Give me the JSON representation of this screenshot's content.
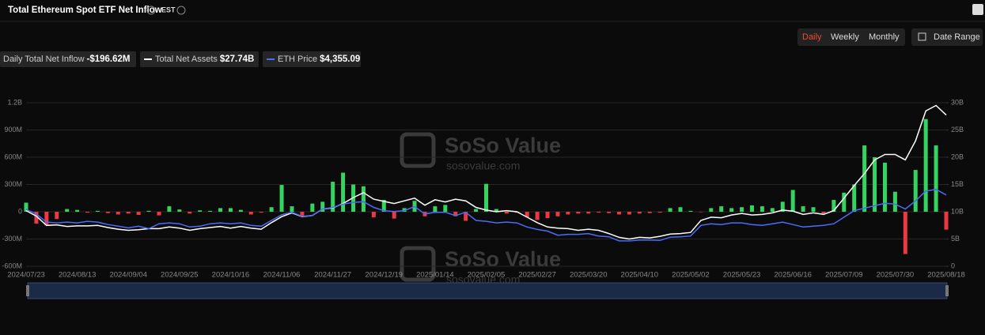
{
  "header": {
    "title": "Total Ethereum Spot ETF Net Inflow",
    "timezone": "EST"
  },
  "controls": {
    "periods": [
      "Daily",
      "Weekly",
      "Monthly"
    ],
    "active": 0,
    "date_range": "Date Range"
  },
  "watermark": {
    "brand": "SoSo Value",
    "site": "sosovalue.com"
  },
  "chart_data": {
    "type": "combo",
    "categories": [
      "2024/07/23",
      null,
      null,
      null,
      null,
      "2024/08/13",
      null,
      null,
      null,
      null,
      "2024/09/04",
      null,
      null,
      null,
      null,
      "2024/09/25",
      null,
      null,
      null,
      null,
      "2024/10/16",
      null,
      null,
      null,
      null,
      "2024/11/06",
      null,
      null,
      null,
      null,
      "2024/11/27",
      null,
      null,
      null,
      null,
      "2024/12/19",
      null,
      null,
      null,
      null,
      "2025/01/14",
      null,
      null,
      null,
      null,
      "2025/02/05",
      null,
      null,
      null,
      null,
      "2025/02/27",
      null,
      null,
      null,
      null,
      "2025/03/20",
      null,
      null,
      null,
      null,
      "2025/04/10",
      null,
      null,
      null,
      null,
      "2025/05/02",
      null,
      null,
      null,
      null,
      "2025/05/23",
      null,
      null,
      null,
      null,
      "2025/06/16",
      null,
      null,
      null,
      null,
      "2025/07/09",
      null,
      null,
      null,
      null,
      "2025/07/30",
      null,
      null,
      null,
      null,
      "2025/08/18"
    ],
    "series": [
      {
        "name": "Daily Total Net Inflow",
        "type": "bar",
        "color": "#35d35f",
        "negative_color": "#ea3943",
        "latest_label": "-$196.62M",
        "values": [
          100000000.0,
          -130000000.0,
          -150000000.0,
          -80000000.0,
          30000000.0,
          20000000.0,
          -10000000.0,
          10000000.0,
          -15000000.0,
          -30000000.0,
          -20000000.0,
          -35000000.0,
          10000000.0,
          -40000000.0,
          60000000.0,
          25000000.0,
          -20000000.0,
          15000000.0,
          10000000.0,
          40000000.0,
          40000000.0,
          20000000.0,
          -30000000.0,
          -10000000.0,
          50000000.0,
          295000000.0,
          60000000.0,
          -50000000.0,
          90000000.0,
          110000000.0,
          330000000.0,
          430000000.0,
          300000000.0,
          280000000.0,
          -60000000.0,
          130000000.0,
          -75000000.0,
          40000000.0,
          120000000.0,
          -50000000.0,
          60000000.0,
          75000000.0,
          -50000000.0,
          -100000000.0,
          30000000.0,
          307000000.0,
          30000000.0,
          -20000000.0,
          -10000000.0,
          -60000000.0,
          -90000000.0,
          -70000000.0,
          -50000000.0,
          -30000000.0,
          -20000000.0,
          -20000000.0,
          -10000000.0,
          -15000000.0,
          -30000000.0,
          -30000000.0,
          -20000000.0,
          -15000000.0,
          -10000000.0,
          40000000.0,
          50000000.0,
          10000000.0,
          -5000000.0,
          40000000.0,
          60000000.0,
          40000000.0,
          50000000.0,
          70000000.0,
          60000000.0,
          40000000.0,
          110000000.0,
          240000000.0,
          60000000.0,
          50000000.0,
          -20000000.0,
          130000000.0,
          210000000.0,
          300000000.0,
          730000000.0,
          600000000.0,
          540000000.0,
          220000000.0,
          -465000000.0,
          460000000.0,
          1020000000.0,
          730000000.0,
          -196620000.0
        ]
      },
      {
        "name": "Total Net Assets",
        "type": "line",
        "axis": "y2",
        "color": "#ffffff",
        "latest_label": "$27.74B",
        "values": [
          10200000000.0,
          9200000000.0,
          7500000000.0,
          7600000000.0,
          7300000000.0,
          7400000000.0,
          7400000000.0,
          7500000000.0,
          7100000000.0,
          6800000000.0,
          6600000000.0,
          6700000000.0,
          6900000000.0,
          6900000000.0,
          7200000000.0,
          7000000000.0,
          6600000000.0,
          6900000000.0,
          7100000000.0,
          7300000000.0,
          7000000000.0,
          7300000000.0,
          7000000000.0,
          6800000000.0,
          8000000000.0,
          9100000000.0,
          9800000000.0,
          9100000000.0,
          9300000000.0,
          10500000000.0,
          10700000000.0,
          11500000000.0,
          12600000000.0,
          13500000000.0,
          12300000000.0,
          11900000000.0,
          11500000000.0,
          12000000000.0,
          12500000000.0,
          11200000000.0,
          12200000000.0,
          11800000000.0,
          12300000000.0,
          12000000000.0,
          10800000000.0,
          10300000000.0,
          10000000000.0,
          10200000000.0,
          10000000000.0,
          9000000000.0,
          8000000000.0,
          7200000000.0,
          7000000000.0,
          6900000000.0,
          6600000000.0,
          6800000000.0,
          6600000000.0,
          6000000000.0,
          5300000000.0,
          5000000000.0,
          5300000000.0,
          5200000000.0,
          5500000000.0,
          5900000000.0,
          6000000000.0,
          6200000000.0,
          8400000000.0,
          9000000000.0,
          8900000000.0,
          9400000000.0,
          9700000000.0,
          9400000000.0,
          9500000000.0,
          9800000000.0,
          10300000000.0,
          10100000000.0,
          9500000000.0,
          9800000000.0,
          9500000000.0,
          10200000000.0,
          12500000000.0,
          14800000000.0,
          17000000000.0,
          19500000000.0,
          20500000000.0,
          20500000000.0,
          19500000000.0,
          23000000000.0,
          28500000000.0,
          29500000000.0,
          27740000000.0
        ]
      },
      {
        "name": "ETH Price",
        "type": "line",
        "axis": "y3",
        "color": "#4a6cf7",
        "latest_label": "$4,355.09",
        "values": [
          3480,
          3200,
          2700,
          2650,
          2700,
          2650,
          2750,
          2700,
          2550,
          2450,
          2350,
          2450,
          2300,
          2600,
          2650,
          2600,
          2400,
          2450,
          2600,
          2650,
          2600,
          2650,
          2500,
          2450,
          2800,
          3150,
          3300,
          3050,
          3100,
          3500,
          3600,
          3800,
          3900,
          3950,
          3600,
          3400,
          3350,
          3400,
          3650,
          3200,
          3300,
          3300,
          3100,
          3300,
          2800,
          2750,
          2650,
          2700,
          2650,
          2400,
          2250,
          2150,
          1900,
          1950,
          1950,
          2000,
          1850,
          1800,
          1550,
          1550,
          1600,
          1600,
          1580,
          1780,
          1800,
          1850,
          2500,
          2600,
          2550,
          2650,
          2650,
          2550,
          2500,
          2600,
          2700,
          2550,
          2400,
          2450,
          2500,
          2600,
          3000,
          3400,
          3550,
          3700,
          3850,
          3800,
          3500,
          4000,
          4600,
          4700,
          4355.09
        ]
      }
    ],
    "ylim": [
      -600000000.0,
      1200000000.0
    ],
    "yticks": [
      {
        "value": 1200000000.0,
        "label": "1.2B"
      },
      {
        "value": 900000000.0,
        "label": "900M"
      },
      {
        "value": 600000000.0,
        "label": "600M"
      },
      {
        "value": 300000000.0,
        "label": "300M"
      },
      0,
      {
        "value": -300000000.0,
        "label": "-300M"
      },
      {
        "value": -600000000.0,
        "label": "-600M"
      }
    ],
    "y2lim": [
      0,
      30000000000.0
    ],
    "y2ticks": [
      {
        "value": 30000000000.0,
        "label": "30B"
      },
      {
        "value": 25000000000.0,
        "label": "25B"
      },
      {
        "value": 20000000000.0,
        "label": "20B"
      },
      {
        "value": 15000000000.0,
        "label": "15B"
      },
      {
        "value": 10000000000.0,
        "label": "10B"
      },
      {
        "value": 5000000000.0,
        "label": "5B"
      },
      0
    ],
    "y3lim": [
      0,
      10000
    ],
    "grid": true
  }
}
